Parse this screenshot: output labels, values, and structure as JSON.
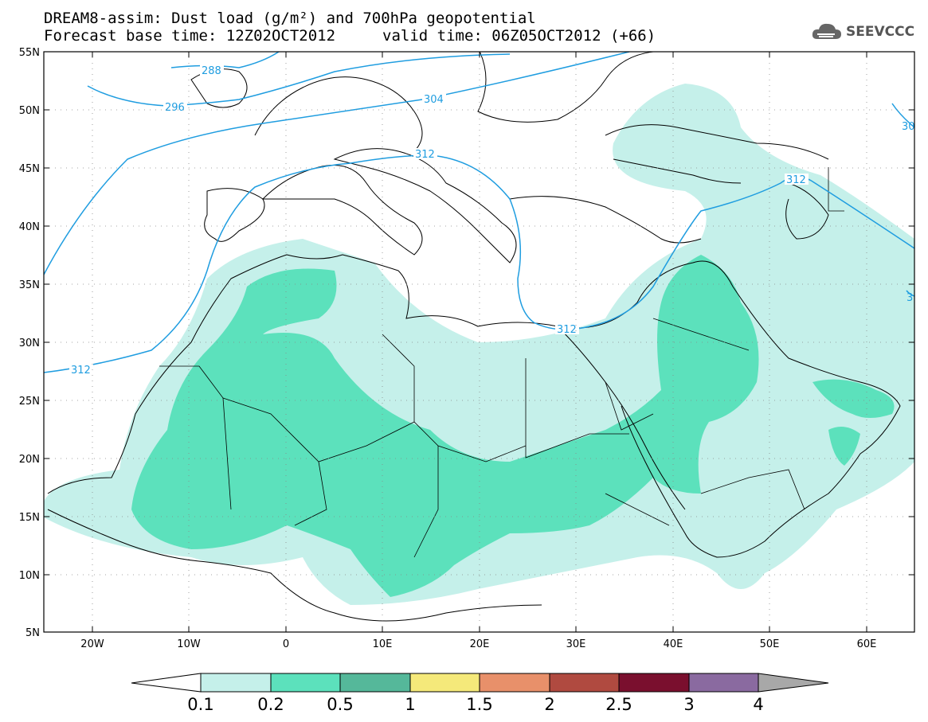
{
  "title": {
    "line1": "DREAM8-assim: Dust load (g/m²) and 700hPa geopotential",
    "line2_left": "Forecast base time: 12Z02OCT2012",
    "line2_right": "valid time: 06Z05OCT2012 (+66)"
  },
  "logo": {
    "text": "SEEVCCC",
    "icon": "cloud-logo-icon"
  },
  "axes": {
    "lat_labels": [
      "55N",
      "50N",
      "45N",
      "40N",
      "35N",
      "30N",
      "25N",
      "20N",
      "15N",
      "10N",
      "5N"
    ],
    "lon_labels": [
      "20W",
      "10W",
      "0",
      "10E",
      "20E",
      "30E",
      "40E",
      "50E",
      "60E"
    ],
    "lat_range": [
      5,
      55
    ],
    "lon_range": [
      -25,
      65
    ],
    "grid": "dotted"
  },
  "contours": {
    "color": "#1f9de0",
    "labels": [
      "288",
      "296",
      "304",
      "312",
      "312",
      "312",
      "312",
      "30",
      "3"
    ]
  },
  "colorbar": {
    "ticks": [
      "0.1",
      "0.2",
      "0.5",
      "1",
      "1.5",
      "2",
      "2.5",
      "3",
      "4"
    ],
    "colors": [
      "#ffffff",
      "#c5f0ea",
      "#9ae6d8",
      "#5ce1bc",
      "#55b89a",
      "#f5e97a",
      "#e8906a",
      "#b04a40",
      "#7a0f2e",
      "#8a6aa0",
      "#a8a8a8"
    ]
  }
}
